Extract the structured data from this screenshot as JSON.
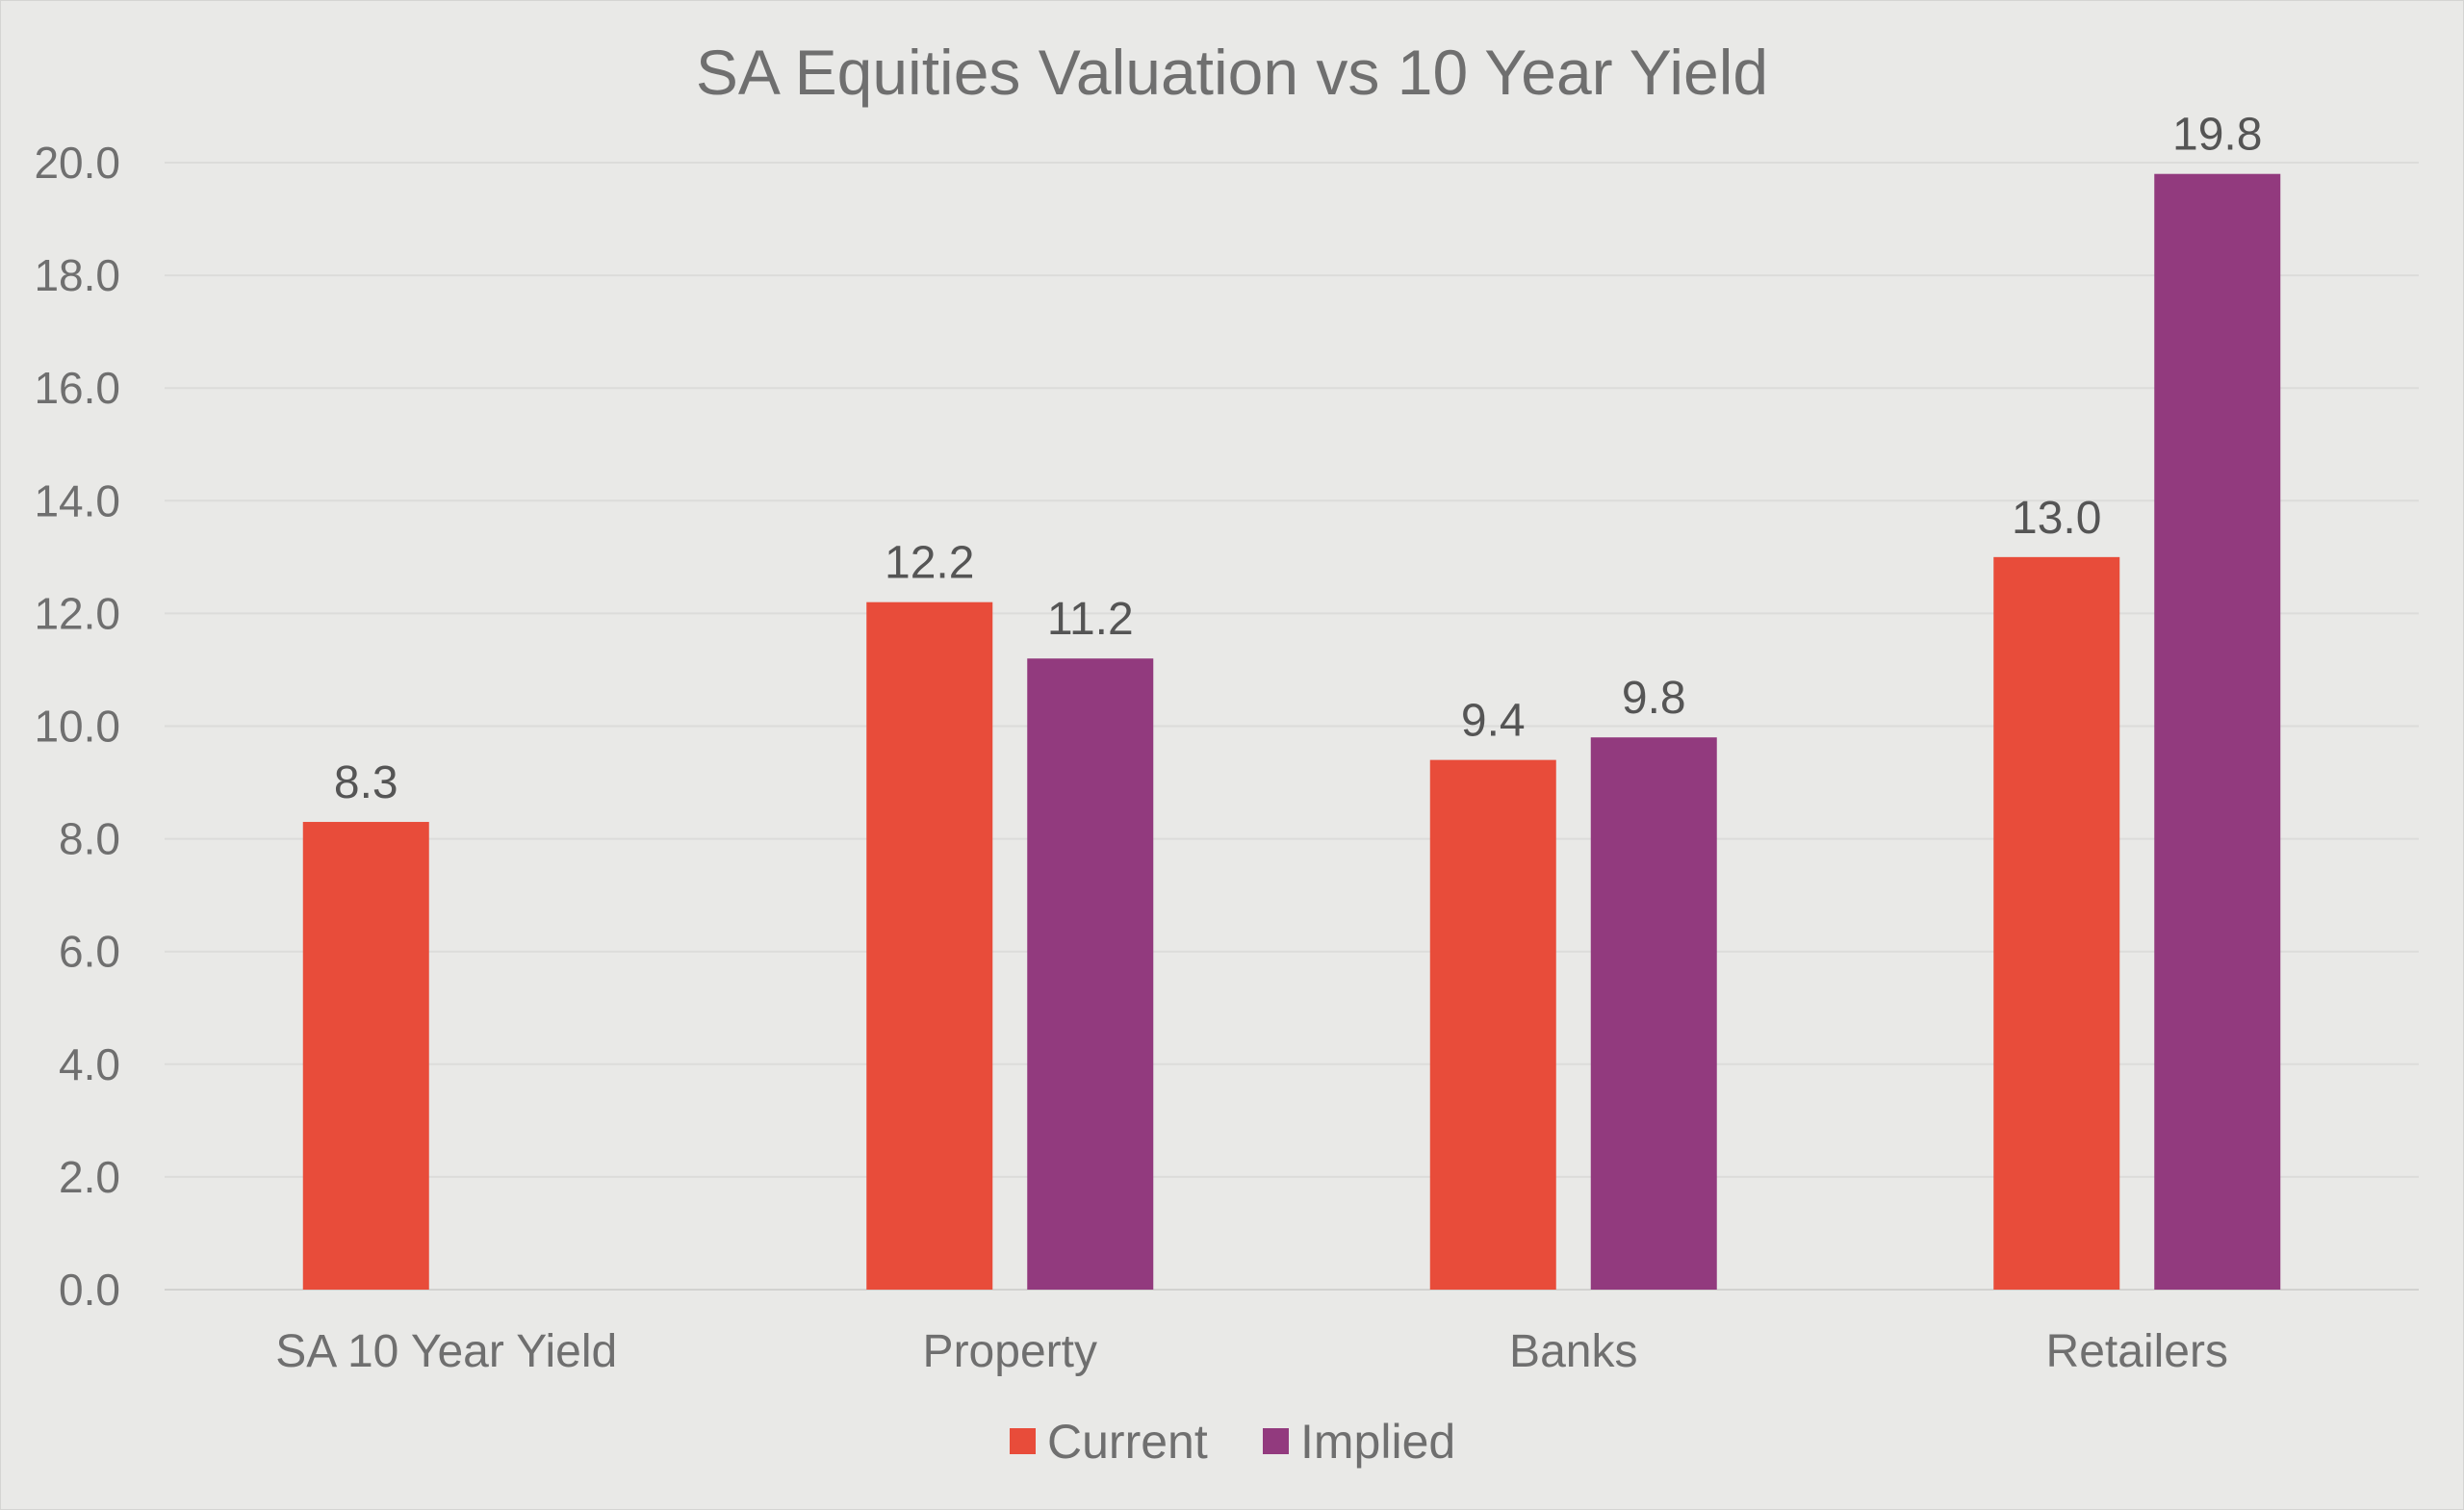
{
  "chart_data": {
    "type": "bar",
    "title": "SA Equities Valuation vs 10 Year Yield",
    "categories": [
      "SA 10 Year Yield",
      "Property",
      "Banks",
      "Retailers"
    ],
    "series": [
      {
        "name": "Current",
        "color": "#e84c3a",
        "values": [
          8.3,
          12.2,
          9.4,
          13.0
        ],
        "labels": [
          "8.3",
          "12.2",
          "9.4",
          "13.0"
        ]
      },
      {
        "name": "Implied",
        "color": "#923a7e",
        "values": [
          null,
          11.2,
          9.8,
          19.8
        ],
        "labels": [
          null,
          "11.2",
          "9.8",
          "19.8"
        ]
      }
    ],
    "ylim": [
      0,
      20
    ],
    "yticks": [
      "0.0",
      "2.0",
      "4.0",
      "6.0",
      "8.0",
      "10.0",
      "12.0",
      "14.0",
      "16.0",
      "18.0",
      "20.0"
    ],
    "grid": true,
    "legend_position": "bottom"
  }
}
